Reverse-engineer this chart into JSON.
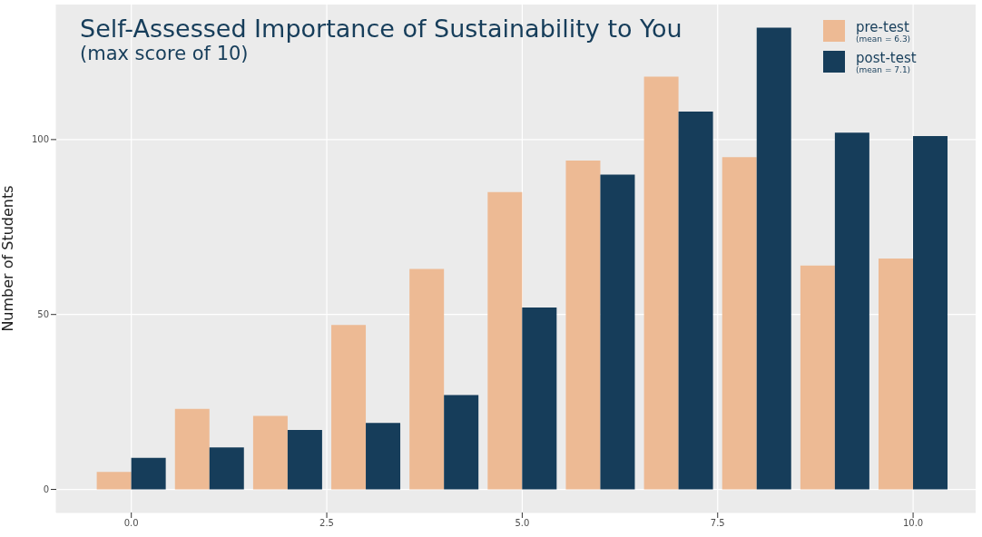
{
  "chart_data": {
    "type": "bar",
    "title": "Self-Assessed Importance of Sustainability to You",
    "subtitle": "(max score of 10)",
    "ylabel": "Number of Students",
    "x": [
      0,
      1,
      2,
      3,
      4,
      5,
      6,
      7,
      8,
      9,
      10
    ],
    "series": [
      {
        "name": "pre-test",
        "color": "#edba94",
        "values": [
          5,
          23,
          21,
          47,
          63,
          85,
          94,
          118,
          95,
          64,
          66
        ]
      },
      {
        "name": "post-test",
        "color": "#163d5a",
        "values": [
          9,
          12,
          17,
          19,
          27,
          52,
          90,
          108,
          132,
          102,
          101
        ]
      }
    ],
    "annotations": [
      "(mean = 6.3)",
      "(mean = 7.1)"
    ],
    "xlim": [
      -0.96,
      10.8
    ],
    "xticks": [
      {
        "value": 0,
        "label": "0.0"
      },
      2.5,
      {
        "value": 5,
        "label": "5.0"
      },
      7.5,
      {
        "value": 10,
        "label": "10.0"
      }
    ],
    "ylim": [
      -6.6,
      138.6
    ],
    "yticks": [
      0,
      50,
      100
    ],
    "grid": true,
    "legend": "top right"
  }
}
